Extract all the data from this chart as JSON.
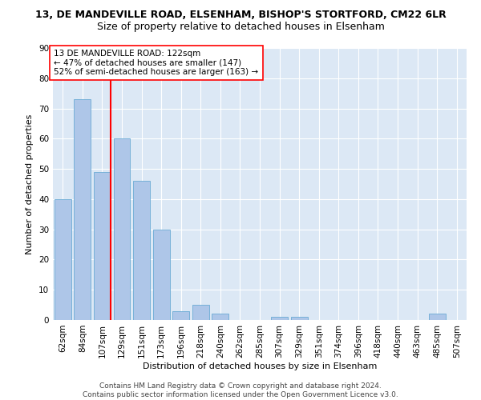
{
  "title1": "13, DE MANDEVILLE ROAD, ELSENHAM, BISHOP'S STORTFORD, CM22 6LR",
  "title2": "Size of property relative to detached houses in Elsenham",
  "xlabel": "Distribution of detached houses by size in Elsenham",
  "ylabel": "Number of detached properties",
  "categories": [
    "62sqm",
    "84sqm",
    "107sqm",
    "129sqm",
    "151sqm",
    "173sqm",
    "196sqm",
    "218sqm",
    "240sqm",
    "262sqm",
    "285sqm",
    "307sqm",
    "329sqm",
    "351sqm",
    "374sqm",
    "396sqm",
    "418sqm",
    "440sqm",
    "463sqm",
    "485sqm",
    "507sqm"
  ],
  "values": [
    40,
    73,
    49,
    60,
    46,
    30,
    3,
    5,
    2,
    0,
    0,
    1,
    1,
    0,
    0,
    0,
    0,
    0,
    0,
    2,
    0
  ],
  "bar_color": "#aec6e8",
  "bar_edge_color": "#6aaad4",
  "vline_color": "red",
  "vline_index": 2,
  "annotation_text": "13 DE MANDEVILLE ROAD: 122sqm\n← 47% of detached houses are smaller (147)\n52% of semi-detached houses are larger (163) →",
  "annotation_box_color": "white",
  "annotation_box_edge": "red",
  "ylim": [
    0,
    90
  ],
  "yticks": [
    0,
    10,
    20,
    30,
    40,
    50,
    60,
    70,
    80,
    90
  ],
  "footer": "Contains HM Land Registry data © Crown copyright and database right 2024.\nContains public sector information licensed under the Open Government Licence v3.0.",
  "bg_color": "#dce8f5",
  "grid_color": "white",
  "title_fontsize": 9,
  "subtitle_fontsize": 9,
  "axis_label_fontsize": 8,
  "tick_fontsize": 7.5,
  "annotation_fontsize": 7.5,
  "footer_fontsize": 6.5
}
